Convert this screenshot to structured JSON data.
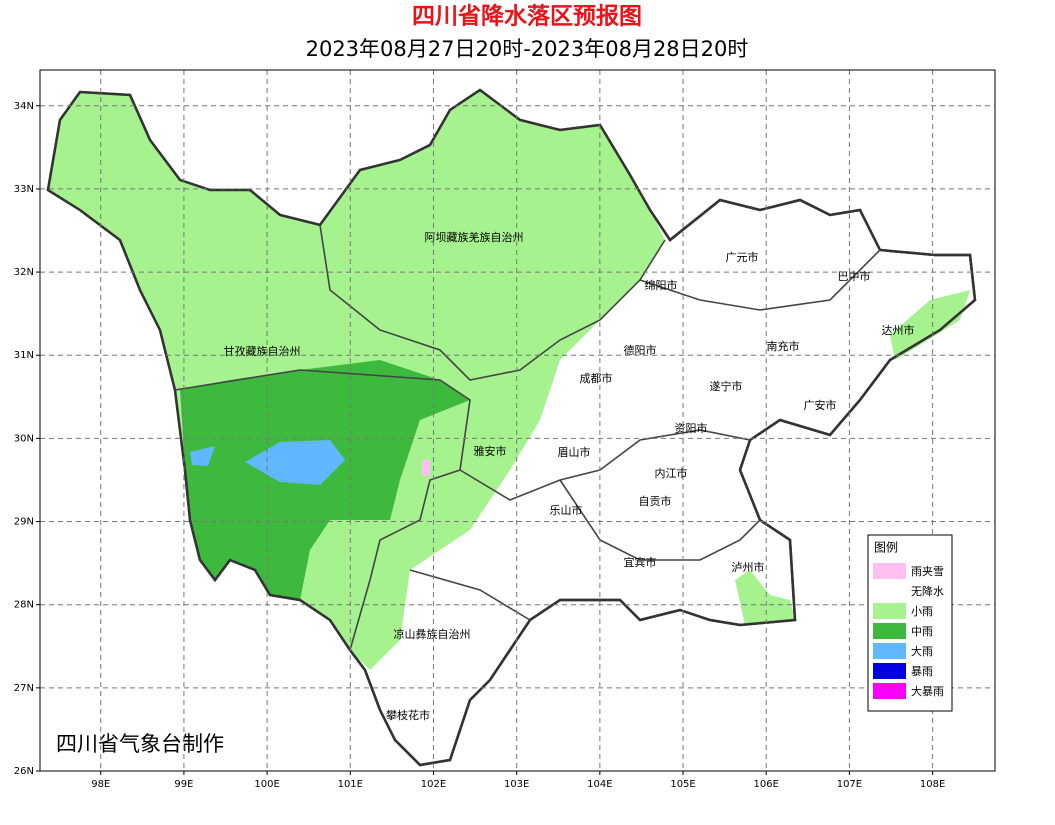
{
  "map": {
    "title": "四川省降水落区预报图",
    "subtitle": "2023年08月27日20时-2023年08月28日20时",
    "xlim": [
      97.27,
      108.75
    ],
    "ylim": [
      26,
      34.43
    ],
    "xticks": [
      {
        "value": 98,
        "label": "98E"
      },
      {
        "value": 99,
        "label": "99E"
      },
      {
        "value": 100,
        "label": "100E"
      },
      {
        "value": 101,
        "label": "101E"
      },
      {
        "value": 102,
        "label": "102E"
      },
      {
        "value": 103,
        "label": "103E"
      },
      {
        "value": 104,
        "label": "104E"
      },
      {
        "value": 105,
        "label": "105E"
      },
      {
        "value": 106,
        "label": "106E"
      },
      {
        "value": 107,
        "label": "107E"
      },
      {
        "value": 108,
        "label": "108E"
      }
    ],
    "yticks": [
      {
        "value": 26,
        "label": "26N"
      },
      {
        "value": 27,
        "label": "27N"
      },
      {
        "value": 28,
        "label": "28N"
      },
      {
        "value": 29,
        "label": "29N"
      },
      {
        "value": 30,
        "label": "30N"
      },
      {
        "value": 31,
        "label": "31N"
      },
      {
        "value": 32,
        "label": "32N"
      },
      {
        "value": 33,
        "label": "33N"
      },
      {
        "value": 34,
        "label": "34N"
      }
    ],
    "grid": true,
    "regions": [
      "阿坝藏族羌族自治州",
      "甘孜藏族自治州",
      "广元市",
      "巴中市",
      "绵阳市",
      "达州市",
      "德阳市",
      "南充市",
      "成都市",
      "遂宁市",
      "广安市",
      "资阳市",
      "雅安市",
      "眉山市",
      "内江市",
      "乐山市",
      "自贡市",
      "宜宾市",
      "泸州市",
      "凉山彝族自治州",
      "攀枝花市"
    ],
    "legend": {
      "title": "图例",
      "items": [
        {
          "name": "雨夹雪",
          "color": "#ffc0f0"
        },
        {
          "name": "无降水",
          "color": "#ffffff"
        },
        {
          "name": "小雨",
          "color": "#a6f28f"
        },
        {
          "name": "中雨",
          "color": "#3dba3d"
        },
        {
          "name": "大雨",
          "color": "#61b8ff"
        },
        {
          "name": "暴雨",
          "color": "#0000e1"
        },
        {
          "name": "大暴雨",
          "color": "#fa00fa"
        }
      ]
    },
    "footer": "四川省气象台制作"
  }
}
